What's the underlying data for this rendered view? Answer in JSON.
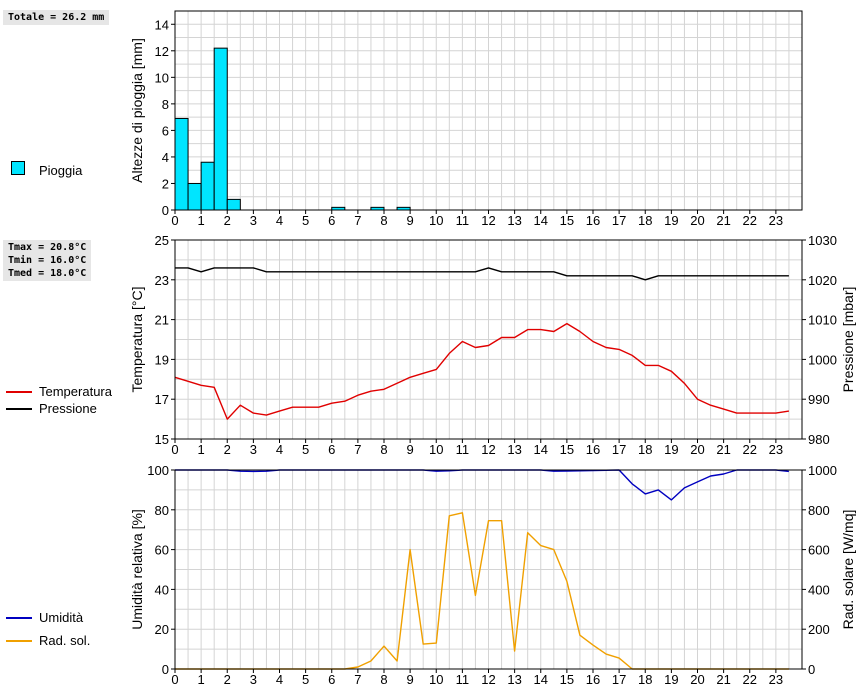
{
  "rain_total": "Totale = 26.2 mm",
  "temp_stats": {
    "tmax": "Tmax = 20.8°C",
    "tmin": "Tmin = 16.0°C",
    "tmed": "Tmed = 18.0°C"
  },
  "legend": {
    "rain": "Pioggia",
    "temperature": "Temperatura",
    "pressure": "Pressione",
    "humidity": "Umidità",
    "solar": "Rad. sol."
  },
  "colors": {
    "rain_fill": "#00e5ff",
    "temperature": "#e00000",
    "pressure": "#000000",
    "humidity": "#0000c0",
    "solar": "#f0a000",
    "grid": "#d4d4d4"
  },
  "chart_data": [
    {
      "type": "bar",
      "ylabel": "Altezze di pioggia [mm]",
      "ylim": [
        0,
        15
      ],
      "yticks": [
        0,
        2,
        4,
        6,
        8,
        10,
        12,
        14
      ],
      "xlim": [
        0,
        24
      ],
      "xticks": [
        0,
        1,
        2,
        3,
        4,
        5,
        6,
        7,
        8,
        9,
        10,
        11,
        12,
        13,
        14,
        15,
        16,
        17,
        18,
        19,
        20,
        21,
        22,
        23
      ],
      "bar_width_hours": 0.5,
      "x": [
        0,
        0.5,
        1,
        1.5,
        2,
        6,
        7.5,
        8.5
      ],
      "values": [
        6.9,
        2.0,
        3.6,
        12.2,
        0.8,
        0.2,
        0.2,
        0.2
      ],
      "series_name": "Pioggia"
    },
    {
      "type": "line",
      "ylabel": "Temperatura [°C]",
      "ylabel_right": "Pressione [mbar]",
      "ylim": [
        15,
        25
      ],
      "yticks": [
        15,
        17,
        19,
        21,
        23,
        25
      ],
      "ylim_right": [
        980,
        1030
      ],
      "yticks_right": [
        980,
        990,
        1000,
        1010,
        1020,
        1030
      ],
      "xlim": [
        0,
        24
      ],
      "xticks": [
        0,
        1,
        2,
        3,
        4,
        5,
        6,
        7,
        8,
        9,
        10,
        11,
        12,
        13,
        14,
        15,
        16,
        17,
        18,
        19,
        20,
        21,
        22,
        23
      ],
      "series": [
        {
          "name": "Temperatura",
          "axis": "left",
          "x": [
            0,
            0.5,
            1,
            1.5,
            2,
            2.5,
            3,
            3.5,
            4,
            4.5,
            5,
            5.5,
            6,
            6.5,
            7,
            7.5,
            8,
            8.5,
            9,
            9.5,
            10,
            10.5,
            11,
            11.5,
            12,
            12.5,
            13,
            13.5,
            14,
            14.5,
            15,
            15.5,
            16,
            16.5,
            17,
            17.5,
            18,
            18.5,
            19,
            19.5,
            20,
            20.5,
            21,
            21.5,
            22,
            22.5,
            23,
            23.5
          ],
          "values": [
            18.1,
            17.9,
            17.7,
            17.6,
            16.0,
            16.7,
            16.3,
            16.2,
            16.4,
            16.6,
            16.6,
            16.6,
            16.8,
            16.9,
            17.2,
            17.4,
            17.5,
            17.8,
            18.1,
            18.3,
            18.5,
            19.3,
            19.9,
            19.6,
            19.7,
            20.1,
            20.1,
            20.5,
            20.5,
            20.4,
            20.8,
            20.4,
            19.9,
            19.6,
            19.5,
            19.2,
            18.7,
            18.7,
            18.4,
            17.8,
            17.0,
            16.7,
            16.5,
            16.3,
            16.3,
            16.3,
            16.3,
            16.4
          ]
        },
        {
          "name": "Pressione",
          "axis": "right",
          "x": [
            0,
            0.5,
            1,
            1.5,
            2,
            2.5,
            3,
            3.5,
            4,
            4.5,
            5,
            5.5,
            6,
            6.5,
            7,
            7.5,
            8,
            8.5,
            9,
            9.5,
            10,
            10.5,
            11,
            11.5,
            12,
            12.5,
            13,
            13.5,
            14,
            14.5,
            15,
            15.5,
            16,
            16.5,
            17,
            17.5,
            18,
            18.5,
            19,
            19.5,
            20,
            20.5,
            21,
            21.5,
            22,
            22.5,
            23,
            23.5
          ],
          "values": [
            1023,
            1023,
            1022,
            1023,
            1023,
            1023,
            1023,
            1022,
            1022,
            1022,
            1022,
            1022,
            1022,
            1022,
            1022,
            1022,
            1022,
            1022,
            1022,
            1022,
            1022,
            1022,
            1022,
            1022,
            1023,
            1022,
            1022,
            1022,
            1022,
            1022,
            1021,
            1021,
            1021,
            1021,
            1021,
            1021,
            1020,
            1021,
            1021,
            1021,
            1021,
            1021,
            1021,
            1021,
            1021,
            1021,
            1021,
            1021
          ]
        }
      ]
    },
    {
      "type": "line",
      "ylabel": "Umidità relativa [%]",
      "ylabel_right": "Rad. solare [W/mq]",
      "ylim": [
        0,
        100
      ],
      "yticks": [
        0,
        20,
        40,
        60,
        80,
        100
      ],
      "ylim_right": [
        0,
        1000
      ],
      "yticks_right": [
        0,
        200,
        400,
        600,
        800,
        1000
      ],
      "xlim": [
        0,
        24
      ],
      "xticks": [
        0,
        1,
        2,
        3,
        4,
        5,
        6,
        7,
        8,
        9,
        10,
        11,
        12,
        13,
        14,
        15,
        16,
        17,
        18,
        19,
        20,
        21,
        22,
        23
      ],
      "series": [
        {
          "name": "Umidità",
          "axis": "left",
          "x": [
            0,
            1,
            2,
            2.5,
            3,
            3.5,
            4,
            9.5,
            10,
            10.5,
            11,
            14,
            14.5,
            15,
            17,
            17.5,
            18,
            18.5,
            19,
            19.5,
            20,
            20.5,
            21,
            21.5,
            22,
            23,
            23.5
          ],
          "values": [
            100,
            100,
            100,
            99.4,
            99.3,
            99.4,
            100,
            100,
            99.4,
            99.6,
            100,
            100,
            99.4,
            99.5,
            100,
            93,
            88,
            90,
            85,
            91,
            94,
            97,
            98,
            100,
            100,
            100,
            99.3
          ]
        },
        {
          "name": "Rad. sol.",
          "axis": "right",
          "x": [
            0,
            6.5,
            7,
            7.5,
            8,
            8.5,
            9,
            9.5,
            10,
            10.5,
            11,
            11.5,
            12,
            12.5,
            13,
            13.5,
            14,
            14.5,
            15,
            15.5,
            16,
            16.5,
            17,
            17.5,
            18,
            23.5
          ],
          "values": [
            0,
            0,
            10,
            40,
            115,
            40,
            600,
            125,
            130,
            770,
            785,
            370,
            745,
            745,
            90,
            685,
            620,
            600,
            440,
            170,
            120,
            75,
            55,
            0,
            0,
            0
          ]
        }
      ]
    }
  ]
}
